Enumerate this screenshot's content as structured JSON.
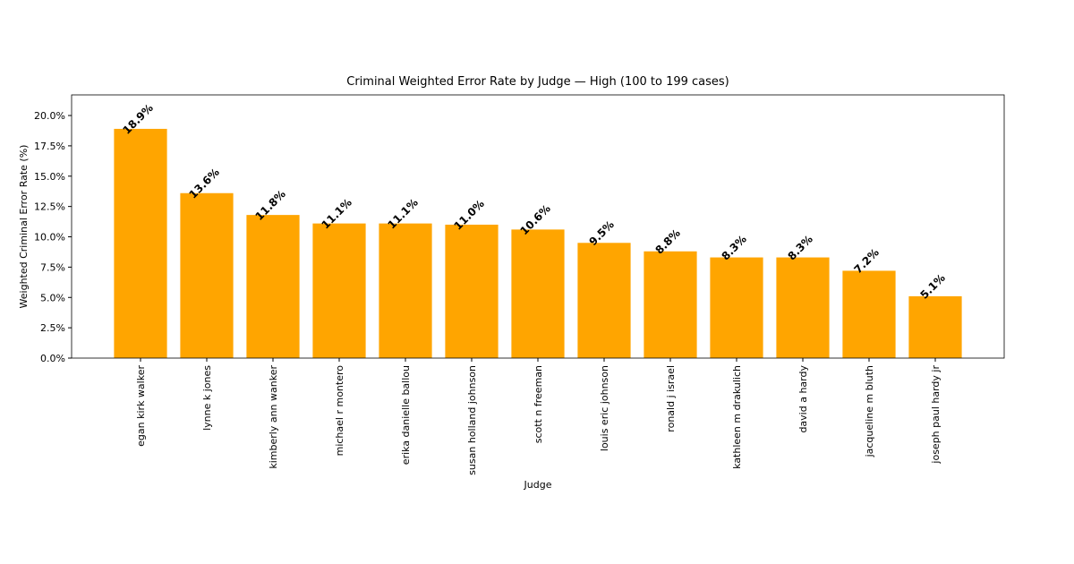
{
  "chart_data": {
    "type": "bar",
    "title": "Criminal Weighted Error Rate by Judge — High (100 to 199 cases)",
    "xlabel": "Judge",
    "ylabel": "Weighted Criminal Error Rate (%)",
    "categories": [
      "egan kirk walker",
      "lynne k jones",
      "kimberly ann wanker",
      "michael r montero",
      "erika danielle ballou",
      "susan holland johnson",
      "scott n freeman",
      "louis eric johnson",
      "ronald j israel",
      "kathleen m drakulich",
      "david a hardy",
      "jacqueline m bluth",
      "joseph paul hardy jr"
    ],
    "values": [
      18.9,
      13.6,
      11.8,
      11.1,
      11.1,
      11.0,
      10.6,
      9.5,
      8.8,
      8.3,
      8.3,
      7.2,
      5.1
    ],
    "value_labels": [
      "18.9%",
      "13.6%",
      "11.8%",
      "11.1%",
      "11.1%",
      "11.0%",
      "10.6%",
      "9.5%",
      "8.8%",
      "8.3%",
      "8.3%",
      "7.2%",
      "5.1%"
    ],
    "color": "#ffa500",
    "ylim": [
      0,
      21.7
    ],
    "yticks": [
      {
        "value": 0,
        "label": "0.0%"
      },
      {
        "value": 2.5,
        "label": "2.5%"
      },
      {
        "value": 5,
        "label": "5.0%"
      },
      {
        "value": 7.5,
        "label": "7.5%"
      },
      {
        "value": 10,
        "label": "10.0%"
      },
      {
        "value": 12.5,
        "label": "12.5%"
      },
      {
        "value": 15,
        "label": "15.0%"
      },
      {
        "value": 17.5,
        "label": "17.5%"
      },
      {
        "value": 20,
        "label": "20.0%"
      }
    ],
    "grid": false
  }
}
